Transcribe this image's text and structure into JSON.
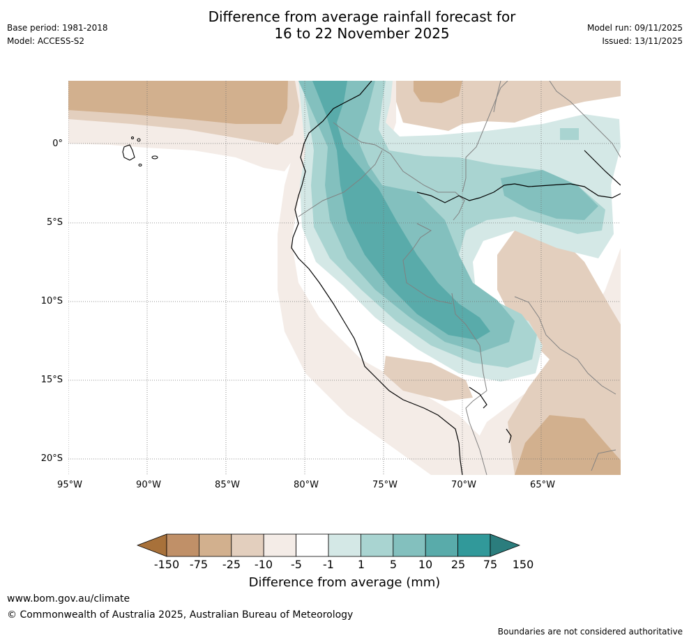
{
  "header": {
    "title_line1": "Difference from average rainfall forecast for",
    "title_line2": "16 to 22 November 2025",
    "base_period": "Base period: 1981-2018",
    "model": "Model: ACCESS-S2",
    "model_run": "Model run: 09/11/2025",
    "issued": "Issued: 13/11/2025"
  },
  "map": {
    "latitude_labels": [
      "0°",
      "5°S",
      "10°S",
      "15°S",
      "20°S"
    ],
    "longitude_labels": [
      "95°W",
      "90°W",
      "85°W",
      "80°W",
      "75°W",
      "70°W",
      "65°W"
    ]
  },
  "colorbar": {
    "title": "Difference from average (mm)",
    "tick_labels": [
      "-150",
      "-75",
      "-25",
      "-10",
      "-5",
      "-1",
      "1",
      "5",
      "10",
      "25",
      "75",
      "150"
    ],
    "colors": [
      "#a8713a",
      "#c09068",
      "#d2b08e",
      "#e3cfbe",
      "#f4ece7",
      "#ffffff",
      "#d4e8e6",
      "#a9d4d1",
      "#83c0be",
      "#59abaa",
      "#31999a",
      "#2b7d7d"
    ]
  },
  "footer": {
    "url": "www.bom.gov.au/climate",
    "copyright": "© Commonwealth of Australia 2025, Australian Bureau of Meteorology",
    "disclaimer": "Boundaries are not considered authoritative"
  }
}
